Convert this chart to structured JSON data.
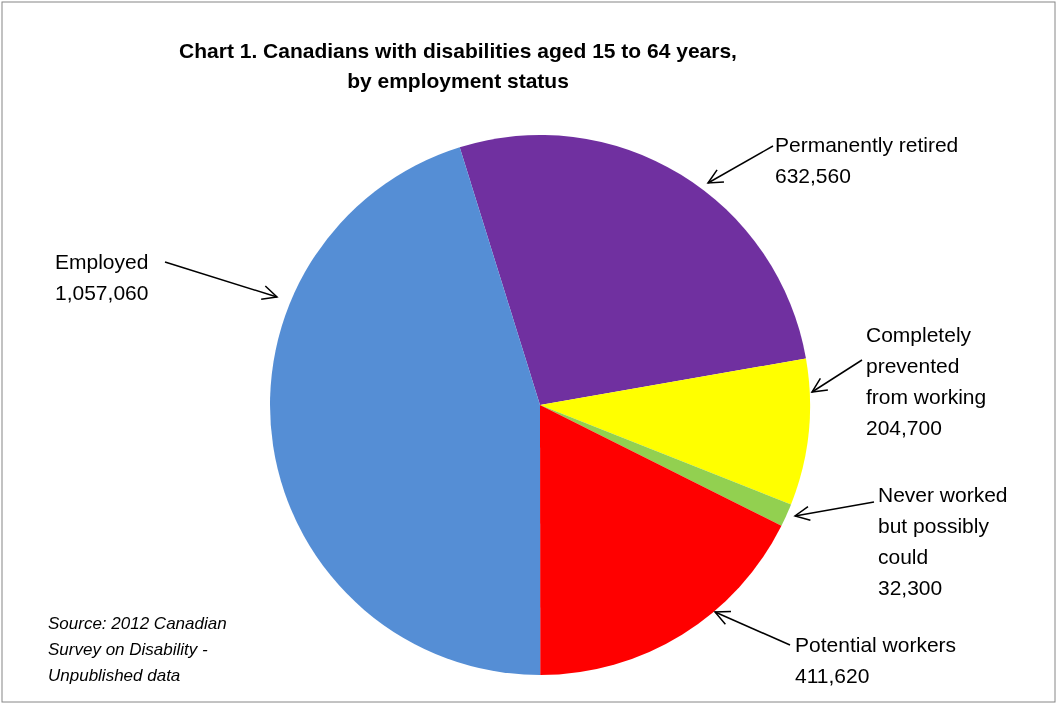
{
  "chart_data": {
    "type": "pie",
    "title": "Chart 1. Canadians with disabilities aged 15 to 64 years, by employment status",
    "categories": [
      "Permanently retired",
      "Completely prevented from working",
      "Never worked but possibly could",
      "Potential workers",
      "Employed"
    ],
    "values": [
      632560,
      204700,
      32300,
      411620,
      1057060
    ],
    "colors": [
      "#7030a0",
      "#ffff00",
      "#92d050",
      "#ff0000",
      "#558ed5"
    ],
    "value_labels": [
      "632,560",
      "204,700",
      "32,300",
      "411,620",
      "1,057,060"
    ],
    "annotations": [
      "Source: 2012 Canadian Survey on Disability - Unpublished data"
    ]
  }
}
